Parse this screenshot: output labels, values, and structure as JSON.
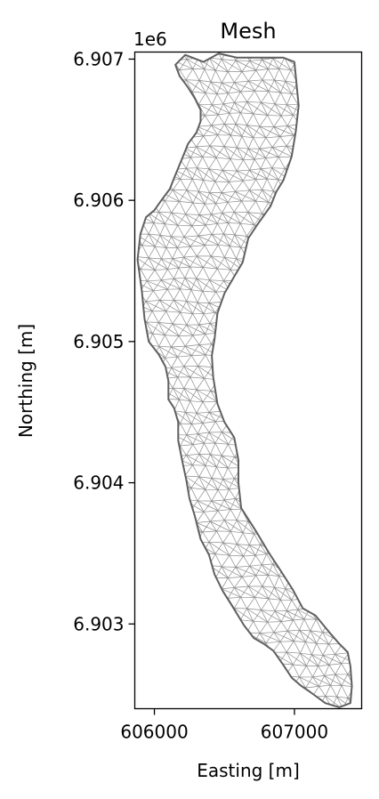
{
  "chart_data": {
    "type": "mesh",
    "title": "Mesh",
    "xlabel": "Easting [m]",
    "ylabel": "Northing [m]",
    "y_offset_label": "1e6",
    "xlim": [
      605860,
      607480
    ],
    "ylim": [
      6902400,
      6907050
    ],
    "x_ticks": [
      {
        "value": 606000,
        "label": "606000"
      },
      {
        "value": 607000,
        "label": "607000"
      }
    ],
    "y_ticks": [
      {
        "value": 6903000,
        "label": "6.903"
      },
      {
        "value": 6904000,
        "label": "6.904"
      },
      {
        "value": 6905000,
        "label": "6.905"
      },
      {
        "value": 6906000,
        "label": "6.906"
      },
      {
        "value": 6907000,
        "label": "6.907"
      }
    ],
    "grid": false,
    "colors": {
      "boundary": "#606060",
      "mesh_edges": "#8c8c8c",
      "frame": "#000000"
    },
    "boundary": [
      [
        606150,
        6906960
      ],
      [
        606220,
        6907030
      ],
      [
        606350,
        6906980
      ],
      [
        606460,
        6907040
      ],
      [
        606590,
        6907010
      ],
      [
        606920,
        6907010
      ],
      [
        607000,
        6906980
      ],
      [
        607030,
        6906670
      ],
      [
        607010,
        6906490
      ],
      [
        606980,
        6906310
      ],
      [
        606920,
        6906140
      ],
      [
        606870,
        6906060
      ],
      [
        606830,
        6905960
      ],
      [
        606730,
        6905820
      ],
      [
        606670,
        6905730
      ],
      [
        606630,
        6905560
      ],
      [
        606570,
        6905460
      ],
      [
        606500,
        6905340
      ],
      [
        606450,
        6905200
      ],
      [
        606430,
        6905020
      ],
      [
        606410,
        6904900
      ],
      [
        606420,
        6904750
      ],
      [
        606450,
        6904560
      ],
      [
        606500,
        6904430
      ],
      [
        606570,
        6904320
      ],
      [
        606600,
        6904160
      ],
      [
        606600,
        6904000
      ],
      [
        606620,
        6903820
      ],
      [
        606730,
        6903650
      ],
      [
        606820,
        6903500
      ],
      [
        606900,
        6903380
      ],
      [
        606990,
        6903240
      ],
      [
        607060,
        6903110
      ],
      [
        607150,
        6903060
      ],
      [
        607250,
        6902940
      ],
      [
        607320,
        6902860
      ],
      [
        607380,
        6902800
      ],
      [
        607400,
        6902700
      ],
      [
        607410,
        6902560
      ],
      [
        607400,
        6902440
      ],
      [
        607320,
        6902410
      ],
      [
        607220,
        6902440
      ],
      [
        607110,
        6902520
      ],
      [
        607050,
        6902560
      ],
      [
        606980,
        6902620
      ],
      [
        606920,
        6902710
      ],
      [
        606850,
        6902810
      ],
      [
        606780,
        6902860
      ],
      [
        606710,
        6902900
      ],
      [
        606640,
        6902990
      ],
      [
        606560,
        6903120
      ],
      [
        606490,
        6903230
      ],
      [
        606430,
        6903350
      ],
      [
        606390,
        6903490
      ],
      [
        606330,
        6903600
      ],
      [
        606290,
        6903760
      ],
      [
        606250,
        6903890
      ],
      [
        606230,
        6904010
      ],
      [
        606200,
        6904150
      ],
      [
        606170,
        6904300
      ],
      [
        606170,
        6904430
      ],
      [
        606140,
        6904530
      ],
      [
        606100,
        6904590
      ],
      [
        606100,
        6904720
      ],
      [
        606080,
        6904820
      ],
      [
        606030,
        6904910
      ],
      [
        605960,
        6905000
      ],
      [
        605930,
        6905160
      ],
      [
        605910,
        6905360
      ],
      [
        605880,
        6905580
      ],
      [
        605900,
        6905760
      ],
      [
        605940,
        6905880
      ],
      [
        606000,
        6905930
      ],
      [
        606050,
        6906000
      ],
      [
        606110,
        6906080
      ],
      [
        606150,
        6906180
      ],
      [
        606200,
        6906300
      ],
      [
        606240,
        6906400
      ],
      [
        606300,
        6906480
      ],
      [
        606330,
        6906560
      ],
      [
        606330,
        6906640
      ],
      [
        606290,
        6906720
      ],
      [
        606240,
        6906800
      ],
      [
        606180,
        6906880
      ]
    ],
    "mesh_spacing_m": 90
  }
}
